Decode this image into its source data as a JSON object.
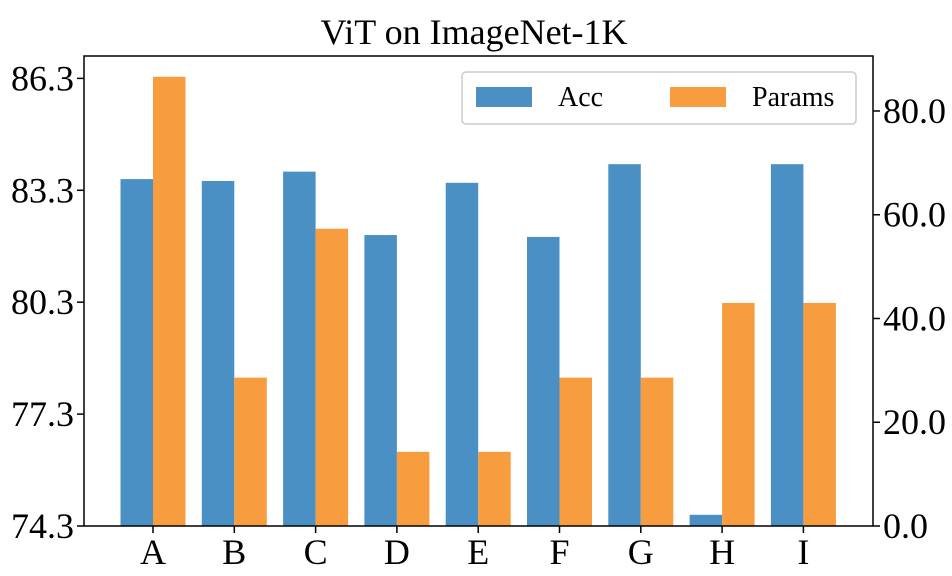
{
  "chart_data": {
    "type": "bar",
    "title": "ViT on ImageNet-1K",
    "categories": [
      "A",
      "B",
      "C",
      "D",
      "E",
      "F",
      "G",
      "H",
      "I"
    ],
    "series": [
      {
        "name": "Acc",
        "axis": "left",
        "color": "#4a90c4",
        "values": [
          83.6,
          83.55,
          83.8,
          82.1,
          83.5,
          82.05,
          84.0,
          74.6,
          84.0
        ]
      },
      {
        "name": "Params",
        "axis": "right",
        "color": "#f89c40",
        "values": [
          86.6,
          28.6,
          57.3,
          14.3,
          14.3,
          28.6,
          28.6,
          43.0,
          43.0
        ]
      }
    ],
    "y_left": {
      "ylim": [
        74.3,
        86.9
      ],
      "ticks": [
        "74.3",
        "77.3",
        "80.3",
        "83.3",
        "86.3"
      ]
    },
    "y_right": {
      "ylim": [
        0,
        90.6
      ],
      "ticks": [
        "0.0",
        "20.0",
        "40.0",
        "60.0",
        "80.0"
      ]
    },
    "xlabel": "",
    "ylabel": "",
    "legend": {
      "position": "top-right",
      "entries": [
        "Acc",
        "Params"
      ]
    },
    "grid": false
  }
}
